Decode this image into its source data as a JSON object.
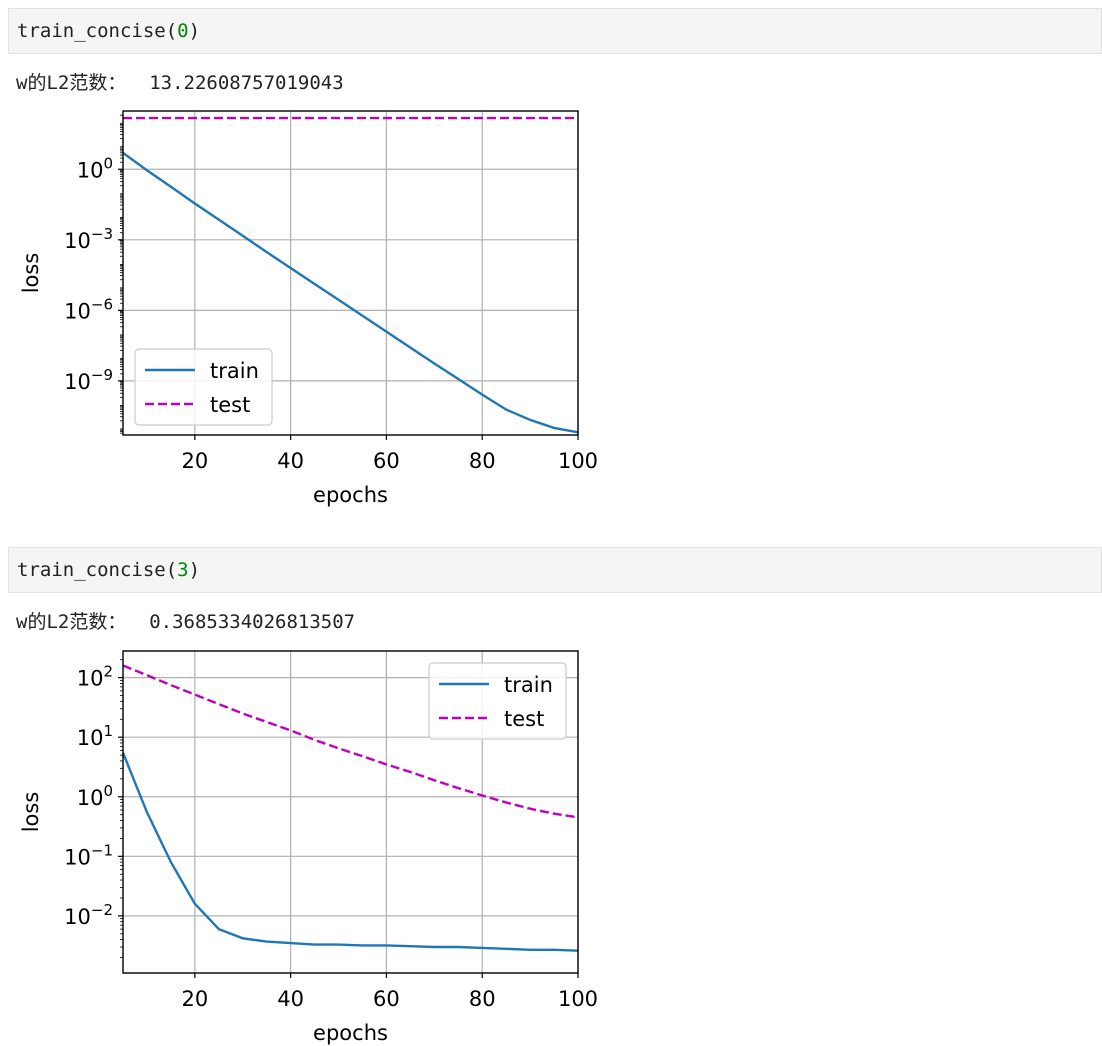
{
  "cells": [
    {
      "code": {
        "fn": "train_concise(",
        "arg": "0",
        "close": ")"
      },
      "output": "w的L2范数：  13.22608757019043"
    },
    {
      "code": {
        "fn": "train_concise(",
        "arg": "3",
        "close": ")"
      },
      "output": "w的L2范数：  0.3685334026813507"
    }
  ],
  "chart_data": [
    {
      "type": "line",
      "xlabel": "epochs",
      "ylabel": "loss",
      "yscale": "log",
      "xlim": [
        5,
        100
      ],
      "ylim": [
        5e-12,
        300
      ],
      "xticks": [
        20,
        40,
        60,
        80,
        100
      ],
      "yticks": [
        {
          "exp": 0,
          "label": "10",
          "sup": "0"
        },
        {
          "exp": -3,
          "label": "10",
          "sup": "−3"
        },
        {
          "exp": -6,
          "label": "10",
          "sup": "−6"
        },
        {
          "exp": -9,
          "label": "10",
          "sup": "−9"
        }
      ],
      "grid": true,
      "legend": "lower-left",
      "series": [
        {
          "name": "train",
          "color": "#1f77b4",
          "dash": "solid",
          "x": [
            5,
            10,
            15,
            20,
            25,
            30,
            35,
            40,
            45,
            50,
            55,
            60,
            65,
            70,
            75,
            80,
            85,
            90,
            95,
            100
          ],
          "y": [
            5,
            0.9,
            0.18,
            0.035,
            0.0072,
            0.0015,
            0.0003,
            6.3e-05,
            1.32e-05,
            2.8e-06,
            5.9e-07,
            1.25e-07,
            2.6e-08,
            5.5e-09,
            1.2e-09,
            2.6e-10,
            6e-11,
            2.2e-11,
            1e-11,
            6.5e-12
          ]
        },
        {
          "name": "test",
          "color": "#bf00bf",
          "dash": "dashed",
          "x": [
            5,
            100
          ],
          "y": [
            150,
            150
          ]
        }
      ]
    },
    {
      "type": "line",
      "xlabel": "epochs",
      "ylabel": "loss",
      "yscale": "log",
      "xlim": [
        5,
        100
      ],
      "ylim": [
        0.0011,
        280
      ],
      "xticks": [
        20,
        40,
        60,
        80,
        100
      ],
      "yticks": [
        {
          "exp": 2,
          "label": "10",
          "sup": "2"
        },
        {
          "exp": 1,
          "label": "10",
          "sup": "1"
        },
        {
          "exp": 0,
          "label": "10",
          "sup": "0"
        },
        {
          "exp": -1,
          "label": "10",
          "sup": "−1"
        },
        {
          "exp": -2,
          "label": "10",
          "sup": "−2"
        }
      ],
      "grid": true,
      "legend": "upper-right",
      "series": [
        {
          "name": "train",
          "color": "#1f77b4",
          "dash": "solid",
          "x": [
            5,
            10,
            15,
            20,
            25,
            30,
            35,
            40,
            45,
            50,
            55,
            60,
            65,
            70,
            75,
            80,
            85,
            90,
            95,
            100
          ],
          "y": [
            5.5,
            0.55,
            0.08,
            0.016,
            0.006,
            0.0042,
            0.0037,
            0.0035,
            0.0033,
            0.0033,
            0.0032,
            0.0032,
            0.0031,
            0.003,
            0.003,
            0.0029,
            0.0028,
            0.0027,
            0.0027,
            0.0026
          ]
        },
        {
          "name": "test",
          "color": "#bf00bf",
          "dash": "dashed",
          "x": [
            5,
            10,
            15,
            20,
            25,
            30,
            35,
            40,
            45,
            50,
            55,
            60,
            65,
            70,
            75,
            80,
            85,
            90,
            95,
            100
          ],
          "y": [
            160,
            110,
            75,
            52,
            36,
            25,
            18,
            13,
            9,
            6.5,
            4.8,
            3.5,
            2.6,
            1.9,
            1.4,
            1.05,
            0.8,
            0.63,
            0.52,
            0.45
          ]
        }
      ]
    }
  ]
}
